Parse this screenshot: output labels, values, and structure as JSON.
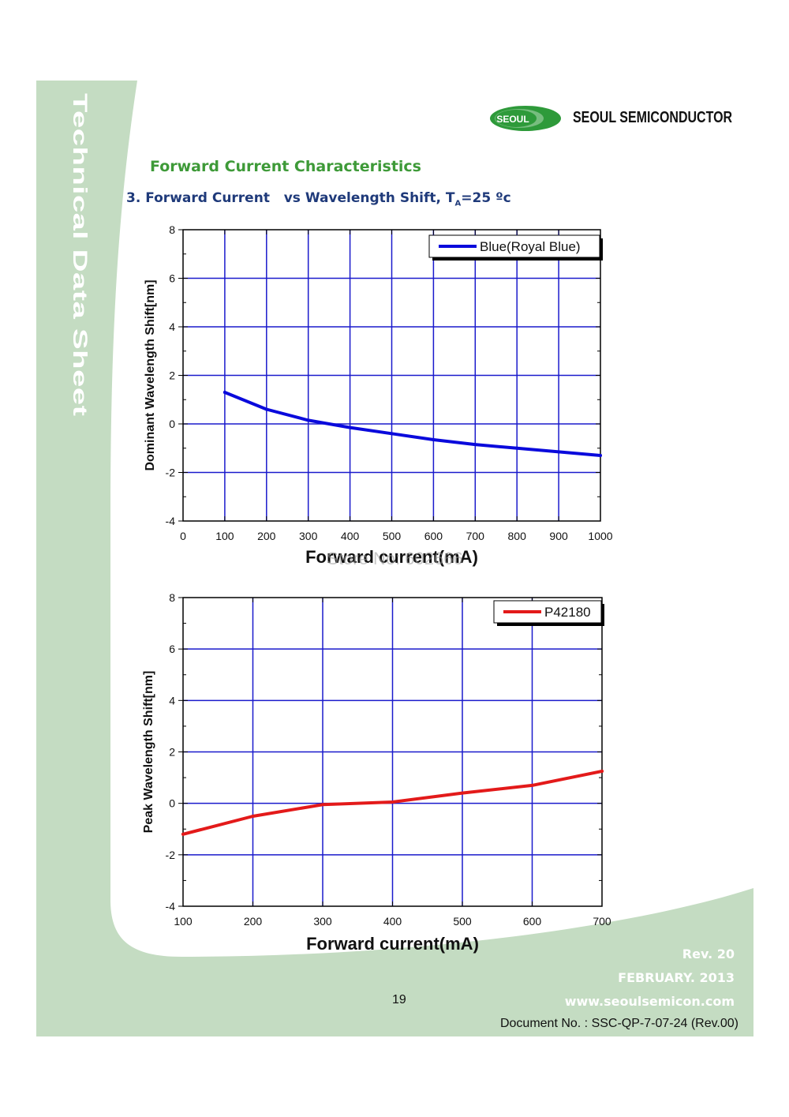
{
  "sidebar": {
    "title": "Technical Data Sheet"
  },
  "header": {
    "logo_text": "SEOUL",
    "brand": "SEOUL SEMICONDUCTOR"
  },
  "section": {
    "title": "Forward Current Characteristics",
    "subtitle_main": "3. Forward Current   vs Wavelength Shift, T",
    "subtitle_sub": "A",
    "subtitle_tail": "=25 ºc"
  },
  "colors": {
    "grid": "#1a1acc",
    "series1": "#0a0adc",
    "series2": "#e31a1a",
    "green_band": "#c4dcc2"
  },
  "chart_data": [
    {
      "type": "line",
      "xlabel": "Forward current(mA)",
      "ylabel": "Dominant Wavelength Shift[nm]",
      "xlim": [
        0,
        1000
      ],
      "ylim": [
        -4,
        8
      ],
      "xticks": [
        0,
        100,
        200,
        300,
        400,
        500,
        600,
        700,
        800,
        900,
        1000
      ],
      "yticks": [
        8,
        6,
        4,
        2,
        0,
        -2,
        -4
      ],
      "grid": true,
      "legend": "top-right",
      "series": [
        {
          "name": "Blue(Royal Blue)",
          "color": "#0a0adc",
          "x": [
            100,
            200,
            300,
            400,
            500,
            600,
            700,
            800,
            900,
            1000
          ],
          "y": [
            1.3,
            0.6,
            0.15,
            -0.15,
            -0.4,
            -0.65,
            -0.85,
            -1.0,
            -1.15,
            -1.3
          ]
        }
      ],
      "watermark": "Store No: 602666"
    },
    {
      "type": "line",
      "xlabel": "Forward current(mA)",
      "ylabel": "Peak Wavelength Shift[nm]",
      "xlim": [
        100,
        700
      ],
      "ylim": [
        -4,
        8
      ],
      "xticks": [
        100,
        200,
        300,
        400,
        500,
        600,
        700
      ],
      "yticks": [
        8,
        6,
        4,
        2,
        0,
        -2,
        -4
      ],
      "grid": true,
      "legend": "top-right",
      "series": [
        {
          "name": "P42180",
          "color": "#e31a1a",
          "x": [
            100,
            200,
            300,
            400,
            500,
            600,
            700
          ],
          "y": [
            -1.2,
            -0.5,
            -0.05,
            0.05,
            0.4,
            0.7,
            1.25
          ]
        }
      ]
    }
  ],
  "footer": {
    "rev": "Rev. 20",
    "date": "FEBRUARY. 2013",
    "url": "www.seoulsemicon.com",
    "page": "19",
    "docno": "Document No. : SSC-QP-7-07-24 (Rev.00)"
  }
}
